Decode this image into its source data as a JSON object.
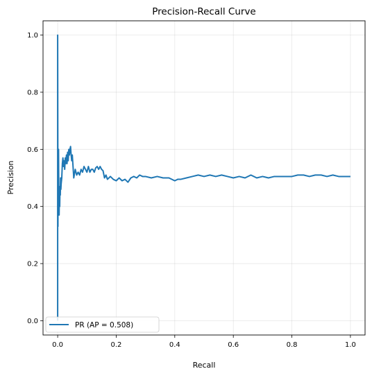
{
  "chart_data": {
    "type": "line",
    "title": "Precision-Recall Curve",
    "xlabel": "Recall",
    "ylabel": "Precision",
    "xlim": [
      -0.05,
      1.05
    ],
    "ylim": [
      -0.05,
      1.05
    ],
    "xticks": [
      0.0,
      0.2,
      0.4,
      0.6,
      0.8,
      1.0
    ],
    "xtick_labels": [
      "0.0",
      "0.2",
      "0.4",
      "0.6",
      "0.8",
      "1.0"
    ],
    "yticks": [
      0.0,
      0.2,
      0.4,
      0.6,
      0.8,
      1.0
    ],
    "ytick_labels": [
      "0.0",
      "0.2",
      "0.4",
      "0.6",
      "0.8",
      "1.0"
    ],
    "grid": true,
    "legend_position": "lower-left",
    "series": [
      {
        "name": "PR (AP = 0.508)",
        "color": "#1f77b4",
        "x": [
          0.0,
          0.0,
          0.001,
          0.001,
          0.002,
          0.002,
          0.003,
          0.004,
          0.005,
          0.006,
          0.007,
          0.008,
          0.009,
          0.01,
          0.011,
          0.012,
          0.014,
          0.016,
          0.018,
          0.02,
          0.022,
          0.024,
          0.026,
          0.028,
          0.03,
          0.032,
          0.034,
          0.036,
          0.038,
          0.04,
          0.042,
          0.044,
          0.046,
          0.048,
          0.05,
          0.055,
          0.06,
          0.065,
          0.07,
          0.075,
          0.08,
          0.085,
          0.09,
          0.095,
          0.1,
          0.105,
          0.11,
          0.115,
          0.12,
          0.125,
          0.13,
          0.135,
          0.14,
          0.145,
          0.15,
          0.155,
          0.16,
          0.165,
          0.17,
          0.175,
          0.18,
          0.19,
          0.2,
          0.21,
          0.22,
          0.23,
          0.24,
          0.25,
          0.26,
          0.27,
          0.28,
          0.29,
          0.3,
          0.32,
          0.34,
          0.36,
          0.38,
          0.4,
          0.41,
          0.42,
          0.44,
          0.46,
          0.48,
          0.5,
          0.52,
          0.54,
          0.56,
          0.58,
          0.6,
          0.62,
          0.64,
          0.66,
          0.68,
          0.7,
          0.72,
          0.74,
          0.76,
          0.78,
          0.8,
          0.82,
          0.84,
          0.86,
          0.88,
          0.9,
          0.92,
          0.94,
          0.96,
          0.98,
          1.0
        ],
        "y": [
          0.0,
          1.0,
          0.33,
          0.5,
          0.4,
          0.57,
          0.6,
          0.42,
          0.37,
          0.45,
          0.4,
          0.47,
          0.44,
          0.5,
          0.46,
          0.48,
          0.5,
          0.55,
          0.57,
          0.54,
          0.56,
          0.53,
          0.57,
          0.55,
          0.58,
          0.55,
          0.59,
          0.56,
          0.6,
          0.58,
          0.6,
          0.61,
          0.58,
          0.56,
          0.58,
          0.5,
          0.53,
          0.51,
          0.52,
          0.51,
          0.53,
          0.52,
          0.54,
          0.53,
          0.52,
          0.54,
          0.52,
          0.53,
          0.53,
          0.52,
          0.535,
          0.54,
          0.53,
          0.54,
          0.53,
          0.525,
          0.5,
          0.51,
          0.495,
          0.5,
          0.505,
          0.495,
          0.49,
          0.5,
          0.49,
          0.495,
          0.485,
          0.5,
          0.505,
          0.5,
          0.51,
          0.505,
          0.505,
          0.5,
          0.505,
          0.5,
          0.5,
          0.49,
          0.495,
          0.495,
          0.5,
          0.505,
          0.51,
          0.505,
          0.51,
          0.505,
          0.51,
          0.505,
          0.5,
          0.505,
          0.5,
          0.51,
          0.5,
          0.505,
          0.5,
          0.505,
          0.505,
          0.505,
          0.505,
          0.51,
          0.51,
          0.505,
          0.51,
          0.51,
          0.505,
          0.51,
          0.505,
          0.505,
          0.505
        ]
      }
    ]
  }
}
